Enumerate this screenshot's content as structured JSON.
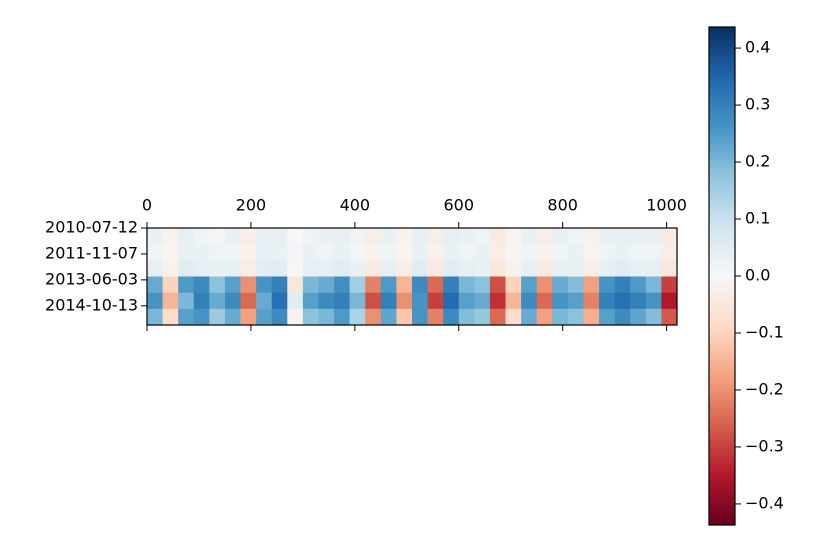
{
  "chart_data": {
    "type": "heatmap",
    "xlim": [
      0,
      1020
    ],
    "xticks": [
      0,
      200,
      400,
      600,
      800,
      1000
    ],
    "ylim": [
      0,
      187
    ],
    "yticks": [
      {
        "value": 0,
        "label": "2010-07-12"
      },
      {
        "value": 50,
        "label": "2011-11-07"
      },
      {
        "value": 100,
        "label": "2013-06-03"
      },
      {
        "value": 150,
        "label": "2014-10-13"
      }
    ],
    "colormap": [
      "#67001f",
      "#b2182b",
      "#d6604d",
      "#f4a582",
      "#fddbc7",
      "#f7f7f7",
      "#d1e5f0",
      "#92c5de",
      "#4393c3",
      "#2166ac",
      "#053061"
    ],
    "vlim": [
      -0.437,
      0.437
    ],
    "colorbar_ticks": [
      {
        "value": -0.4,
        "label": "−0.4"
      },
      {
        "value": -0.3,
        "label": "−0.3"
      },
      {
        "value": -0.2,
        "label": "−0.2"
      },
      {
        "value": -0.1,
        "label": "−0.1"
      },
      {
        "value": 0,
        "label": "0.0"
      },
      {
        "value": 0.1,
        "label": "0.1"
      },
      {
        "value": 0.2,
        "label": "0.2"
      },
      {
        "value": 0.3,
        "label": "0.3"
      },
      {
        "value": 0.4,
        "label": "0.4"
      }
    ],
    "z": [
      [
        0.03,
        -0.02,
        0.04,
        0.02,
        0.01,
        0.03,
        -0.03,
        0.03,
        0.04,
        0.0,
        0.02,
        0.03,
        0.04,
        0.02,
        -0.03,
        0.03,
        -0.02,
        0.04,
        -0.03,
        0.04,
        0.03,
        0.02,
        -0.04,
        -0.01,
        0.03,
        -0.03,
        0.03,
        0.02,
        -0.02,
        0.03,
        0.04,
        0.03,
        0.03,
        -0.04
      ],
      [
        0.02,
        -0.01,
        0.03,
        0.03,
        0.02,
        0.02,
        -0.02,
        0.04,
        0.03,
        0.01,
        0.03,
        0.02,
        0.03,
        0.01,
        -0.02,
        0.02,
        -0.01,
        0.03,
        -0.02,
        0.03,
        0.02,
        0.03,
        -0.03,
        -0.01,
        0.02,
        -0.02,
        0.02,
        0.03,
        -0.01,
        0.02,
        0.03,
        0.02,
        0.02,
        -0.03
      ],
      [
        0.04,
        -0.02,
        0.05,
        0.04,
        0.03,
        0.04,
        -0.03,
        0.05,
        0.05,
        0.0,
        0.04,
        0.04,
        0.05,
        0.03,
        -0.04,
        0.04,
        -0.03,
        0.05,
        -0.04,
        0.05,
        0.04,
        0.03,
        -0.05,
        -0.02,
        0.04,
        -0.04,
        0.04,
        0.03,
        -0.03,
        0.04,
        0.05,
        0.04,
        0.04,
        -0.05
      ],
      [
        0.22,
        -0.1,
        0.25,
        0.28,
        0.18,
        0.24,
        -0.2,
        0.26,
        0.3,
        -0.05,
        0.2,
        0.22,
        0.27,
        0.15,
        -0.22,
        0.25,
        -0.15,
        0.28,
        -0.25,
        0.3,
        0.2,
        0.18,
        -0.28,
        -0.1,
        0.24,
        -0.2,
        0.22,
        0.19,
        -0.18,
        0.26,
        0.3,
        0.25,
        0.2,
        -0.3
      ],
      [
        0.26,
        -0.15,
        0.2,
        0.3,
        0.22,
        0.28,
        -0.25,
        0.22,
        0.33,
        0.05,
        0.24,
        0.28,
        0.3,
        0.2,
        -0.28,
        0.3,
        -0.2,
        0.26,
        -0.3,
        0.34,
        0.24,
        0.22,
        -0.32,
        -0.15,
        0.28,
        -0.25,
        0.26,
        0.24,
        -0.22,
        0.3,
        0.33,
        0.3,
        0.26,
        -0.35
      ],
      [
        0.2,
        -0.08,
        0.24,
        0.26,
        0.16,
        0.22,
        -0.18,
        0.24,
        0.28,
        -0.02,
        0.18,
        0.2,
        0.25,
        0.14,
        -0.2,
        0.23,
        -0.12,
        0.26,
        -0.22,
        0.28,
        0.19,
        0.17,
        -0.25,
        -0.08,
        0.22,
        -0.18,
        0.2,
        0.18,
        -0.16,
        0.24,
        0.28,
        0.23,
        0.19,
        -0.27
      ]
    ]
  }
}
